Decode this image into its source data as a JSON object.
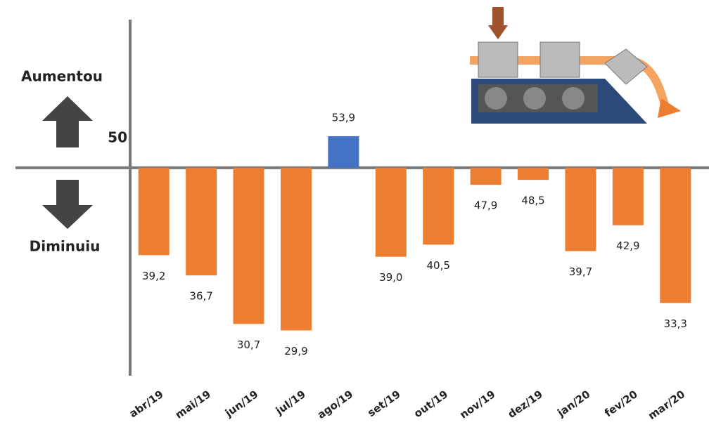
{
  "chart_data": {
    "type": "bar",
    "annotations": [
      "Aumentou",
      "Diminuiu"
    ],
    "categories": [
      "abr/19",
      "mai/19",
      "jun/19",
      "jul/19",
      "ago/19",
      "set/19",
      "out/19",
      "nov/19",
      "dez/19",
      "jan/20",
      "fev/20",
      "mar/20"
    ],
    "values": [
      39.2,
      36.7,
      30.7,
      29.9,
      53.9,
      39.0,
      40.5,
      47.9,
      48.5,
      39.7,
      42.9,
      33.3
    ],
    "value_labels": [
      "39,2",
      "36,7",
      "30,7",
      "29,9",
      "53,9",
      "39,0",
      "40,5",
      "47,9",
      "48,5",
      "39,7",
      "42,9",
      "33,3"
    ],
    "colors": [
      "#ed7d31",
      "#ed7d31",
      "#ed7d31",
      "#ed7d31",
      "#4472c4",
      "#ed7d31",
      "#ed7d31",
      "#ed7d31",
      "#ed7d31",
      "#ed7d31",
      "#ed7d31",
      "#ed7d31"
    ],
    "ylim": [
      24.3,
      68.3
    ],
    "yticks": [
      50
    ]
  }
}
